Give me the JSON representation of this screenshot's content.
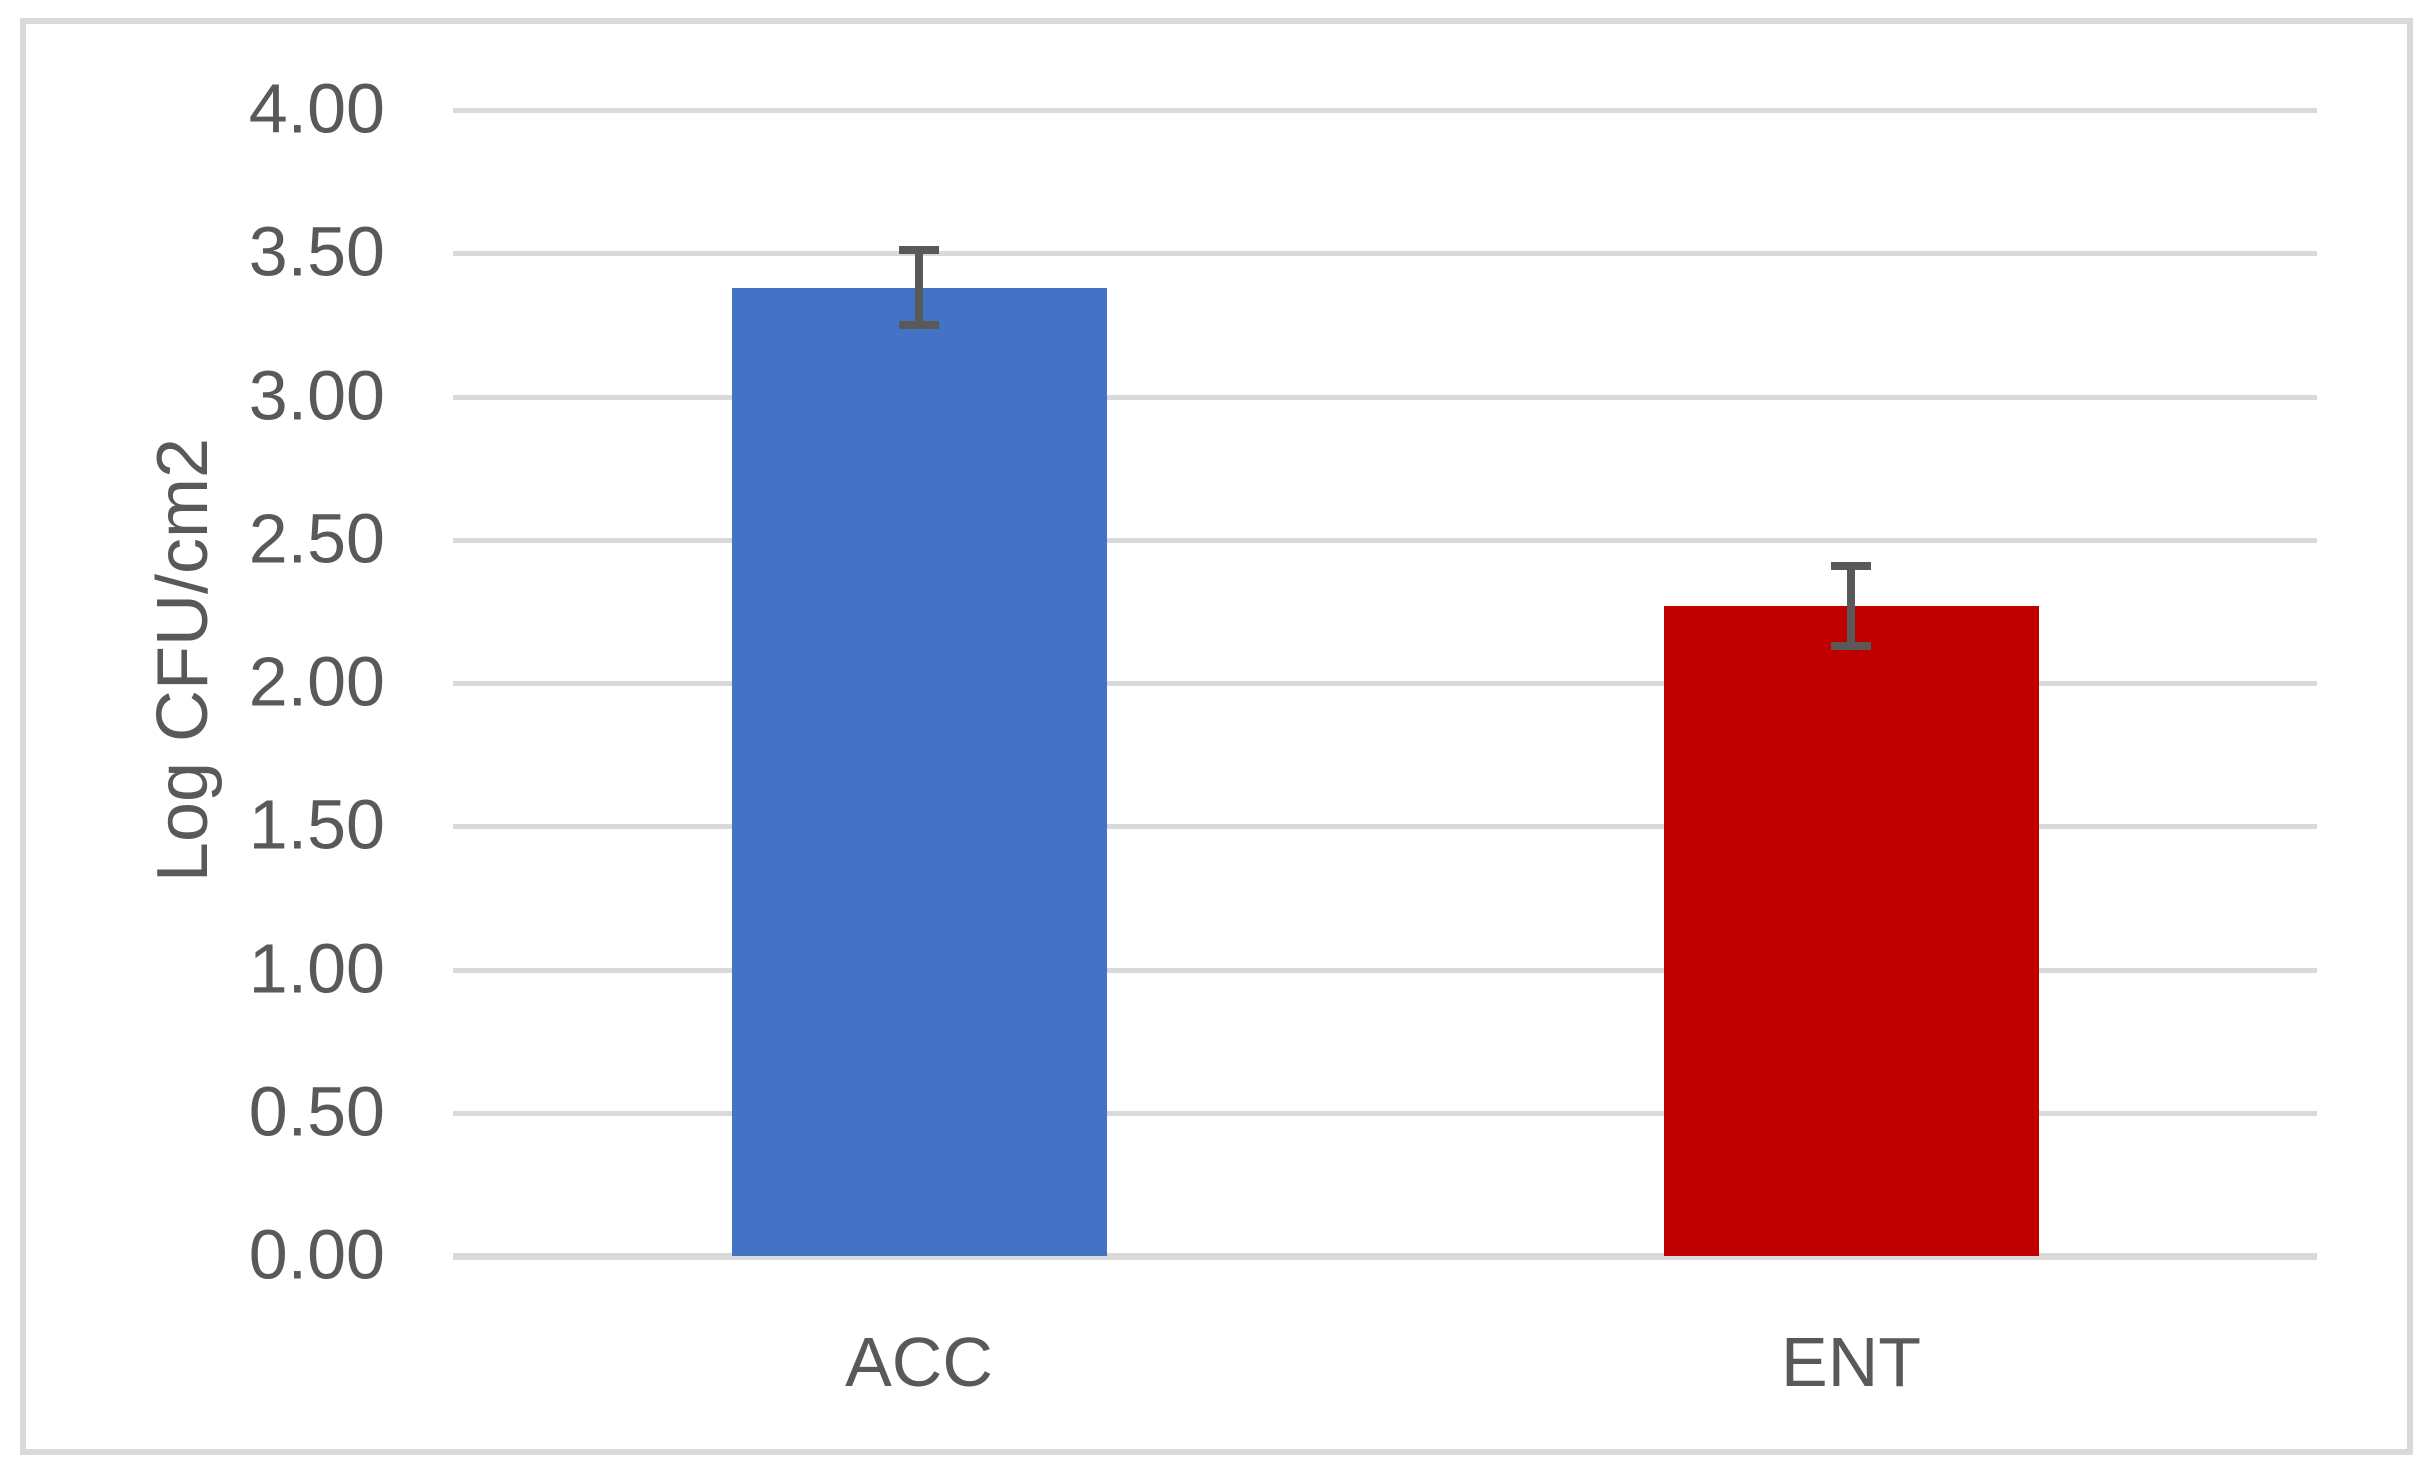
{
  "figure": {
    "background": "#FFFFFF",
    "border_color": "#D9D9D9"
  },
  "chart_data": {
    "type": "bar",
    "title": "",
    "xlabel": "",
    "ylabel": "Log CFU/cm2",
    "categories": [
      "ACC",
      "ENT"
    ],
    "values": [
      3.38,
      2.27
    ],
    "error_bars": [
      0.13,
      0.14
    ],
    "bar_colors": [
      "#4472C4",
      "#C00000"
    ],
    "ylim": [
      0,
      4
    ],
    "ytick_step": 0.5,
    "ytick_labels": [
      "0.00",
      "0.50",
      "1.00",
      "1.50",
      "2.00",
      "2.50",
      "3.00",
      "3.50",
      "4.00"
    ],
    "grid": true,
    "legend": false,
    "colors": {
      "gridline": "#D9D9D9",
      "axis_line": "#D9D9D9",
      "tick_text": "#595959",
      "error_bar": "#595959"
    }
  }
}
